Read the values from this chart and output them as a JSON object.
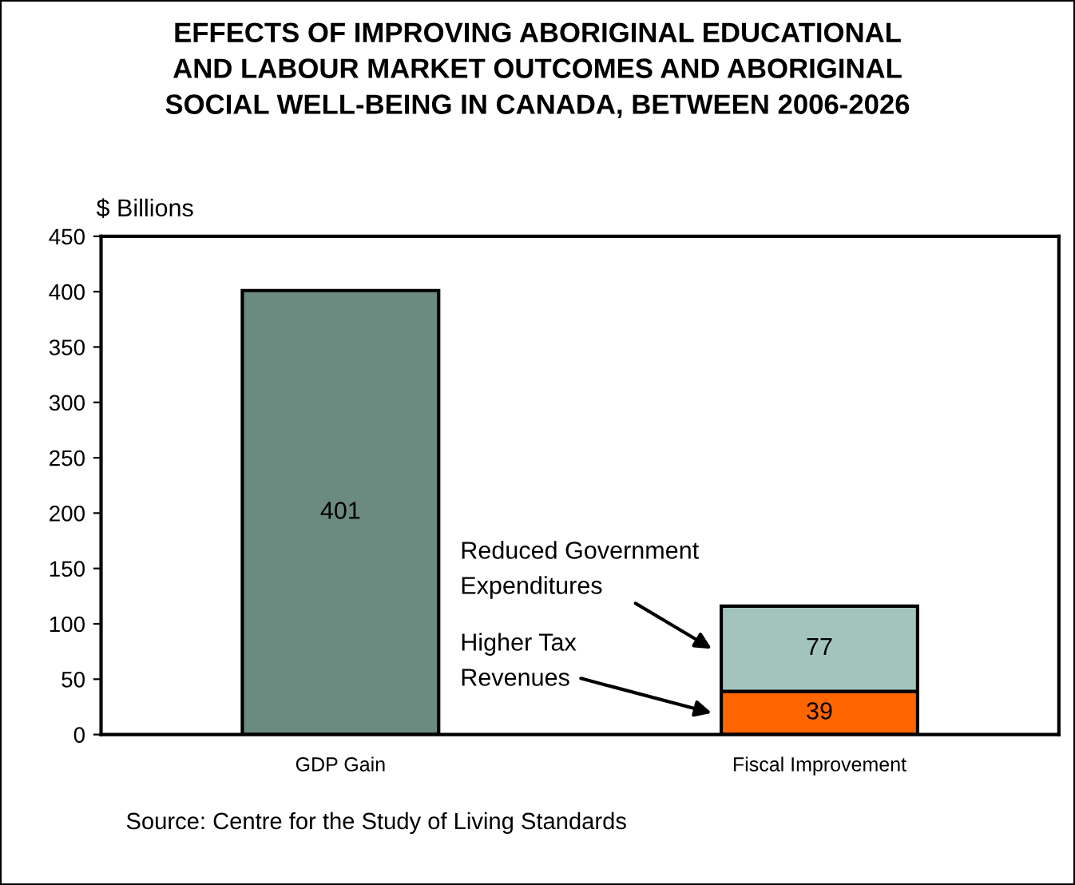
{
  "chart_data": {
    "type": "bar",
    "stacked": true,
    "title": "EFFECTS OF IMPROVING ABORIGINAL EDUCATIONAL\nAND LABOUR MARKET OUTCOMES AND ABORIGINAL\nSOCIAL WELL-BEING IN CANADA, BETWEEN 2006-2026",
    "ylabel": "$ Billions",
    "categories": [
      "GDP Gain",
      "Fiscal Improvement"
    ],
    "series": [
      {
        "color": "#6b8a80",
        "values": [
          401,
          null
        ]
      },
      {
        "name": "Higher Tax\nRevenues",
        "color": "#ff6600",
        "values": [
          null,
          39
        ]
      },
      {
        "name": "Reduced Government\nExpenditures",
        "color": "#a3c4bc",
        "values": [
          null,
          77
        ]
      }
    ],
    "ylim": [
      0,
      450
    ],
    "yticks": [
      0,
      50,
      100,
      150,
      200,
      250,
      300,
      350,
      400,
      450
    ],
    "data_labels": true,
    "grid": false,
    "legend": false,
    "annotations": [
      "Source: Centre for the Study of Living Standards"
    ]
  }
}
